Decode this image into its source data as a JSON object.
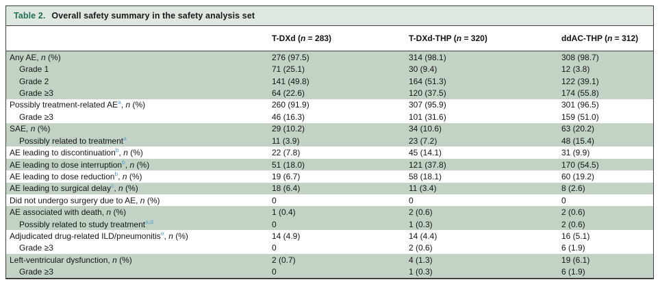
{
  "title": {
    "prefix": "Table 2.",
    "text": "Overall safety summary in the safety analysis set"
  },
  "columns": [
    {
      "label": "T-DXd",
      "n": "283"
    },
    {
      "label": "T-DXd-THP",
      "n": "320"
    },
    {
      "label": "ddAC-THP",
      "n": "312"
    }
  ],
  "rows": [
    {
      "label": "Any AE",
      "sup": "",
      "tail": ", n (%)",
      "indent": false,
      "shaded": true,
      "values": [
        "276 (97.5)",
        "314 (98.1)",
        "308 (98.7)"
      ]
    },
    {
      "label": "Grade 1",
      "sup": "",
      "tail": "",
      "indent": true,
      "shaded": true,
      "values": [
        "71 (25.1)",
        "30 (9.4)",
        "12 (3.8)"
      ]
    },
    {
      "label": "Grade 2",
      "sup": "",
      "tail": "",
      "indent": true,
      "shaded": true,
      "values": [
        "141 (49.8)",
        "164 (51.3)",
        "122 (39.1)"
      ]
    },
    {
      "label": "Grade ≥3",
      "sup": "",
      "tail": "",
      "indent": true,
      "shaded": true,
      "values": [
        "64 (22.6)",
        "120 (37.5)",
        "174 (55.8)"
      ]
    },
    {
      "label": "Possibly treatment-related AE",
      "sup": "a",
      "tail": ", n (%)",
      "indent": false,
      "shaded": false,
      "values": [
        "260 (91.9)",
        "307 (95.9)",
        "301 (96.5)"
      ]
    },
    {
      "label": "Grade ≥3",
      "sup": "",
      "tail": "",
      "indent": true,
      "shaded": false,
      "values": [
        "46 (16.3)",
        "101 (31.6)",
        "159 (51.0)"
      ]
    },
    {
      "label": "SAE",
      "sup": "",
      "tail": ", n (%)",
      "indent": false,
      "shaded": true,
      "values": [
        "29 (10.2)",
        "34 (10.6)",
        "63 (20.2)"
      ]
    },
    {
      "label": "Possibly related to treatment",
      "sup": "a",
      "tail": "",
      "indent": true,
      "shaded": true,
      "values": [
        "11 (3.9)",
        "23 (7.2)",
        "48 (15.4)"
      ]
    },
    {
      "label": "AE leading to discontinuation",
      "sup": "b",
      "tail": ", n (%)",
      "indent": false,
      "shaded": false,
      "values": [
        "22 (7.8)",
        "45 (14.1)",
        "31 (9.9)"
      ]
    },
    {
      "label": "AE leading to dose interruption",
      "sup": "b",
      "tail": ", n (%)",
      "indent": false,
      "shaded": true,
      "values": [
        "51 (18.0)",
        "121 (37.8)",
        "170 (54.5)"
      ]
    },
    {
      "label": "AE leading to dose reduction",
      "sup": "b",
      "tail": ", n (%)",
      "indent": false,
      "shaded": false,
      "values": [
        "19 (6.7)",
        "58 (18.1)",
        "60 (19.2)"
      ]
    },
    {
      "label": "AE leading to surgical delay",
      "sup": "c",
      "tail": ", n (%)",
      "indent": false,
      "shaded": true,
      "values": [
        "18 (6.4)",
        "11 (3.4)",
        "8 (2.6)"
      ]
    },
    {
      "label": "Did not undergo surgery due to AE",
      "sup": "",
      "tail": ", n (%)",
      "indent": false,
      "shaded": false,
      "values": [
        "0",
        "0",
        "0"
      ]
    },
    {
      "label": "AE associated with death",
      "sup": "",
      "tail": ", n (%)",
      "indent": false,
      "shaded": true,
      "values": [
        "1 (0.4)",
        "2 (0.6)",
        "2 (0.6)"
      ]
    },
    {
      "label": "Possibly related to study treatment",
      "sup": "a,d",
      "tail": "",
      "indent": true,
      "shaded": true,
      "values": [
        "0",
        "1 (0.3)",
        "2 (0.6)"
      ]
    },
    {
      "label": "Adjudicated drug-related ILD/pneumonitis",
      "sup": "e",
      "tail": ", n (%)",
      "indent": false,
      "shaded": false,
      "values": [
        "14 (4.9)",
        "14 (4.4)",
        "16 (5.1)"
      ]
    },
    {
      "label": "Grade ≥3",
      "sup": "",
      "tail": "",
      "indent": true,
      "shaded": false,
      "values": [
        "0",
        "2 (0.6)",
        "6 (1.9)"
      ]
    },
    {
      "label": "Left-ventricular dysfunction",
      "sup": "",
      "tail": ", n (%)",
      "indent": false,
      "shaded": true,
      "values": [
        "2 (0.7)",
        "4 (1.3)",
        "19 (6.1)"
      ]
    },
    {
      "label": "Grade ≥3",
      "sup": "",
      "tail": "",
      "indent": true,
      "shaded": true,
      "values": [
        "0",
        "1 (0.3)",
        "6 (1.9)"
      ]
    }
  ],
  "colors": {
    "shaded_row": "#c2d3c6",
    "title_bar": "#dee8e0",
    "title_prefix_green": "#1f6e54",
    "superscript_blue": "#4b9fd3",
    "border": "#3d3d3d"
  }
}
